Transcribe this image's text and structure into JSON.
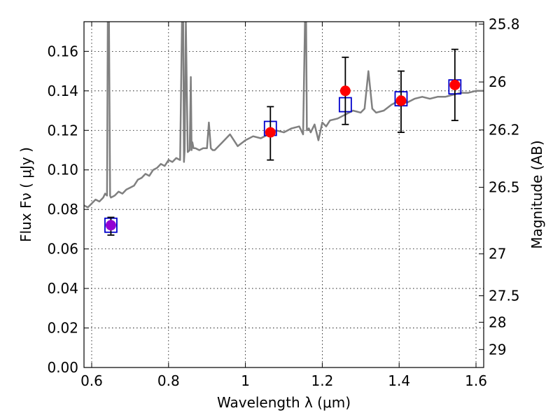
{
  "chart_data": {
    "type": "scatter",
    "title": "",
    "xlabel": "Wavelength  λ (μm)",
    "ylabel": "Flux  Fν  ( μJy )",
    "y2label": "Magnitude (AB)",
    "xlim": [
      0.58,
      1.62
    ],
    "ylim": [
      0.0,
      0.175
    ],
    "xticks": [
      0.6,
      0.8,
      1.0,
      1.2,
      1.4,
      1.6
    ],
    "xtick_labels": [
      "0.6",
      "0.8",
      "1",
      "1.2",
      "1.4",
      "1.6"
    ],
    "yticks": [
      0.0,
      0.02,
      0.04,
      0.06,
      0.08,
      0.1,
      0.12,
      0.14,
      0.16
    ],
    "ytick_labels": [
      "0.00",
      "0.02",
      "0.04",
      "0.06",
      "0.08",
      "0.10",
      "0.12",
      "0.14",
      "0.16"
    ],
    "y2ticks": [
      {
        "label": "25.8",
        "flux": 0.1738
      },
      {
        "label": "26",
        "flux": 0.1445
      },
      {
        "label": "26.2",
        "flux": 0.1202
      },
      {
        "label": "26.5",
        "flux": 0.0912
      },
      {
        "label": "27",
        "flux": 0.0575
      },
      {
        "label": "27.5",
        "flux": 0.0363
      },
      {
        "label": "28",
        "flux": 0.0229
      },
      {
        "label": "29",
        "flux": 0.0091
      }
    ],
    "grid": true,
    "series": [
      {
        "kind": "line",
        "color": "#808080",
        "x": [
          0.58,
          0.59,
          0.6,
          0.61,
          0.62,
          0.63,
          0.635,
          0.64,
          0.642,
          0.645,
          0.648,
          0.65,
          0.66,
          0.67,
          0.68,
          0.69,
          0.7,
          0.71,
          0.72,
          0.73,
          0.74,
          0.75,
          0.76,
          0.77,
          0.78,
          0.79,
          0.8,
          0.81,
          0.82,
          0.83,
          0.835,
          0.838,
          0.84,
          0.842,
          0.845,
          0.85,
          0.855,
          0.858,
          0.86,
          0.862,
          0.865,
          0.87,
          0.88,
          0.89,
          0.9,
          0.905,
          0.91,
          0.915,
          0.92,
          0.94,
          0.96,
          0.98,
          1.0,
          1.02,
          1.04,
          1.06,
          1.08,
          1.1,
          1.12,
          1.14,
          1.15,
          1.155,
          1.158,
          1.16,
          1.165,
          1.17,
          1.18,
          1.19,
          1.2,
          1.21,
          1.22,
          1.24,
          1.26,
          1.28,
          1.3,
          1.31,
          1.32,
          1.33,
          1.34,
          1.36,
          1.38,
          1.4,
          1.42,
          1.44,
          1.46,
          1.48,
          1.5,
          1.52,
          1.54,
          1.56,
          1.58,
          1.6,
          1.62
        ],
        "y": [
          0.082,
          0.081,
          0.083,
          0.085,
          0.084,
          0.086,
          0.088,
          0.087,
          0.175,
          0.175,
          0.087,
          0.086,
          0.087,
          0.089,
          0.088,
          0.09,
          0.091,
          0.092,
          0.095,
          0.096,
          0.098,
          0.097,
          0.1,
          0.101,
          0.103,
          0.102,
          0.105,
          0.104,
          0.106,
          0.105,
          0.175,
          0.175,
          0.104,
          0.11,
          0.175,
          0.109,
          0.11,
          0.147,
          0.11,
          0.114,
          0.111,
          0.111,
          0.11,
          0.111,
          0.111,
          0.124,
          0.111,
          0.11,
          0.11,
          0.114,
          0.118,
          0.112,
          0.115,
          0.117,
          0.116,
          0.118,
          0.12,
          0.119,
          0.121,
          0.122,
          0.118,
          0.175,
          0.175,
          0.12,
          0.121,
          0.119,
          0.123,
          0.115,
          0.124,
          0.122,
          0.125,
          0.126,
          0.128,
          0.13,
          0.129,
          0.131,
          0.15,
          0.131,
          0.129,
          0.13,
          0.133,
          0.135,
          0.134,
          0.136,
          0.137,
          0.136,
          0.137,
          0.137,
          0.138,
          0.139,
          0.139,
          0.14,
          0.14
        ]
      },
      {
        "kind": "markers-square",
        "color": "#0000cc",
        "x": [
          0.65,
          1.065,
          1.26,
          1.405,
          1.545
        ],
        "y": [
          0.072,
          0.121,
          0.133,
          0.136,
          0.142
        ]
      },
      {
        "kind": "markers-circle-errorbars",
        "color": "#ff0000",
        "first_color": "#9400d3",
        "errcolor": "#000000",
        "x": [
          0.65,
          1.065,
          1.26,
          1.405,
          1.545
        ],
        "y": [
          0.072,
          0.119,
          0.14,
          0.135,
          0.143
        ],
        "yerr_low": [
          0.005,
          0.014,
          0.017,
          0.016,
          0.018
        ],
        "yerr_high": [
          0.004,
          0.013,
          0.017,
          0.015,
          0.018
        ]
      }
    ]
  }
}
